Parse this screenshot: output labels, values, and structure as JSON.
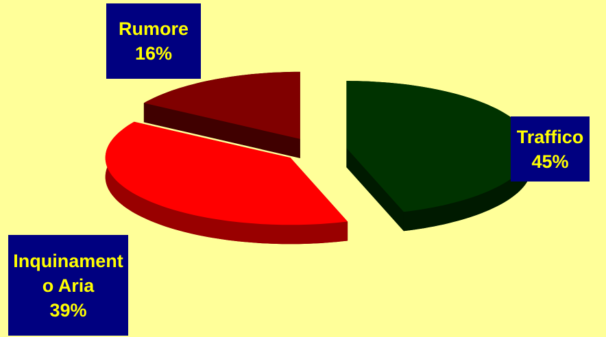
{
  "chart_data": {
    "type": "pie",
    "categories": [
      "Traffico",
      "Inquinamento Aria",
      "Rumore"
    ],
    "values": [
      45,
      39,
      16
    ],
    "value_labels": [
      "45%",
      "39%",
      "16%"
    ],
    "colors": [
      "#003300",
      "#ff0000",
      "#800000"
    ],
    "side_colors": [
      "#001a00",
      "#990000",
      "#400000"
    ],
    "label_color": "#ffff00",
    "label_background": "#000080"
  }
}
